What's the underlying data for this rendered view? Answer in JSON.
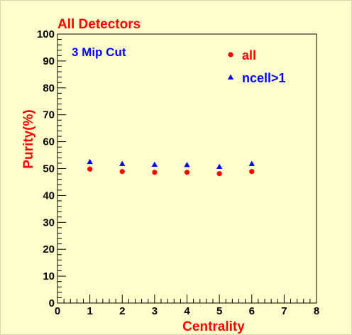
{
  "chart_data": {
    "type": "scatter",
    "title": "All Detectors",
    "annotation": "3 Mip Cut",
    "xlabel": "Centrality",
    "ylabel": "Purity(%)",
    "xlim": [
      0,
      8
    ],
    "ylim": [
      0,
      100
    ],
    "x_ticks": [
      0,
      1,
      2,
      3,
      4,
      5,
      6,
      7,
      8
    ],
    "y_ticks": [
      0,
      10,
      20,
      30,
      40,
      50,
      60,
      70,
      80,
      90,
      100
    ],
    "legend_position": "top-right",
    "series": [
      {
        "name": "all",
        "marker": "circle",
        "color": "#ff0000",
        "x": [
          1,
          2,
          3,
          4,
          5,
          6
        ],
        "y": [
          49.8,
          48.9,
          48.6,
          48.6,
          48.1,
          48.9
        ]
      },
      {
        "name": "ncell>1",
        "marker": "triangle",
        "color": "#0000ff",
        "x": [
          1,
          2,
          3,
          4,
          5,
          6
        ],
        "y": [
          52.5,
          51.8,
          51.5,
          51.4,
          50.7,
          51.8
        ]
      }
    ],
    "colors": {
      "background": "#ffffcc",
      "title": "#ff0000",
      "annotation": "#0000ff",
      "axis_labels": "#ff0000",
      "axes": "#000000"
    }
  }
}
